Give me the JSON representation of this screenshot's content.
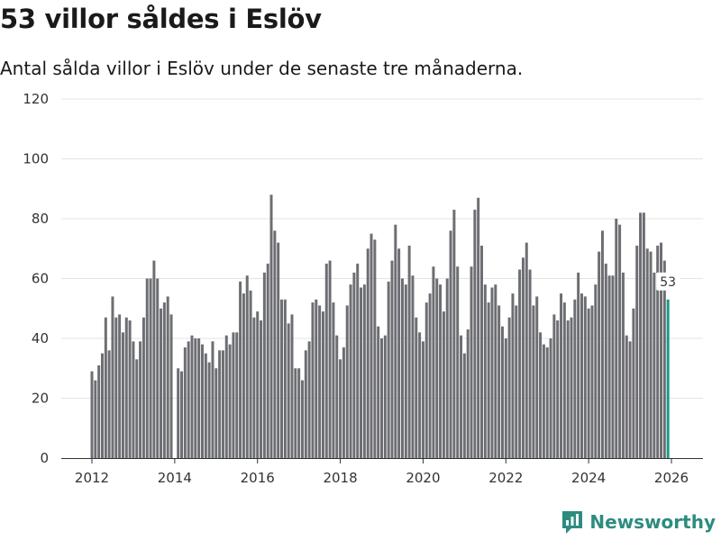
{
  "title": "53 villor såldes i Eslöv",
  "subtitle": "Antal sålda villor i Eslöv under de senaste tre månaderna.",
  "brand": "Newsworthy",
  "chart_data": {
    "type": "bar",
    "title": "53 villor såldes i Eslöv",
    "subtitle": "Antal sålda villor i Eslöv under de senaste tre månaderna.",
    "xlabel": "",
    "ylabel": "",
    "ylim": [
      0,
      120
    ],
    "yticks": [
      0,
      20,
      40,
      60,
      80,
      100,
      120
    ],
    "xticks": [
      2012,
      2014,
      2016,
      2018,
      2020,
      2022,
      2024,
      2026
    ],
    "x_start": 2012.0,
    "x_step": 0.0833333,
    "values": [
      29,
      26,
      31,
      35,
      47,
      36,
      54,
      47,
      48,
      42,
      47,
      46,
      39,
      33,
      39,
      47,
      60,
      60,
      66,
      60,
      50,
      52,
      54,
      48,
      null,
      30,
      29,
      37,
      39,
      41,
      40,
      40,
      38,
      35,
      32,
      39,
      30,
      36,
      36,
      41,
      38,
      42,
      42,
      59,
      55,
      61,
      56,
      47,
      49,
      46,
      62,
      65,
      88,
      76,
      72,
      53,
      53,
      45,
      48,
      30,
      30,
      26,
      36,
      39,
      52,
      53,
      51,
      49,
      65,
      66,
      52,
      41,
      33,
      37,
      51,
      58,
      62,
      65,
      57,
      58,
      70,
      75,
      73,
      44,
      40,
      41,
      59,
      66,
      78,
      70,
      60,
      58,
      71,
      61,
      47,
      42,
      39,
      52,
      55,
      64,
      60,
      58,
      49,
      60,
      76,
      83,
      64,
      41,
      35,
      43,
      64,
      83,
      87,
      71,
      58,
      52,
      57,
      58,
      51,
      44,
      40,
      47,
      55,
      51,
      63,
      67,
      72,
      63,
      51,
      54,
      42,
      38,
      37,
      40,
      48,
      46,
      55,
      52,
      46,
      47,
      53,
      62,
      55,
      54,
      50,
      51,
      58,
      69,
      76,
      65,
      61,
      61,
      80,
      78,
      62,
      41,
      39,
      50,
      71,
      82,
      82,
      70,
      69,
      62,
      71,
      72,
      66,
      53
    ],
    "highlight": {
      "index": 167,
      "value": 53,
      "label": "53"
    }
  },
  "colors": {
    "bar": "#6d6e73",
    "highlight": "#1a9988",
    "grid": "#e3e3e3",
    "brand": "#2d8c7e"
  },
  "icons": {
    "brand": "bar-chart-logo-icon"
  }
}
